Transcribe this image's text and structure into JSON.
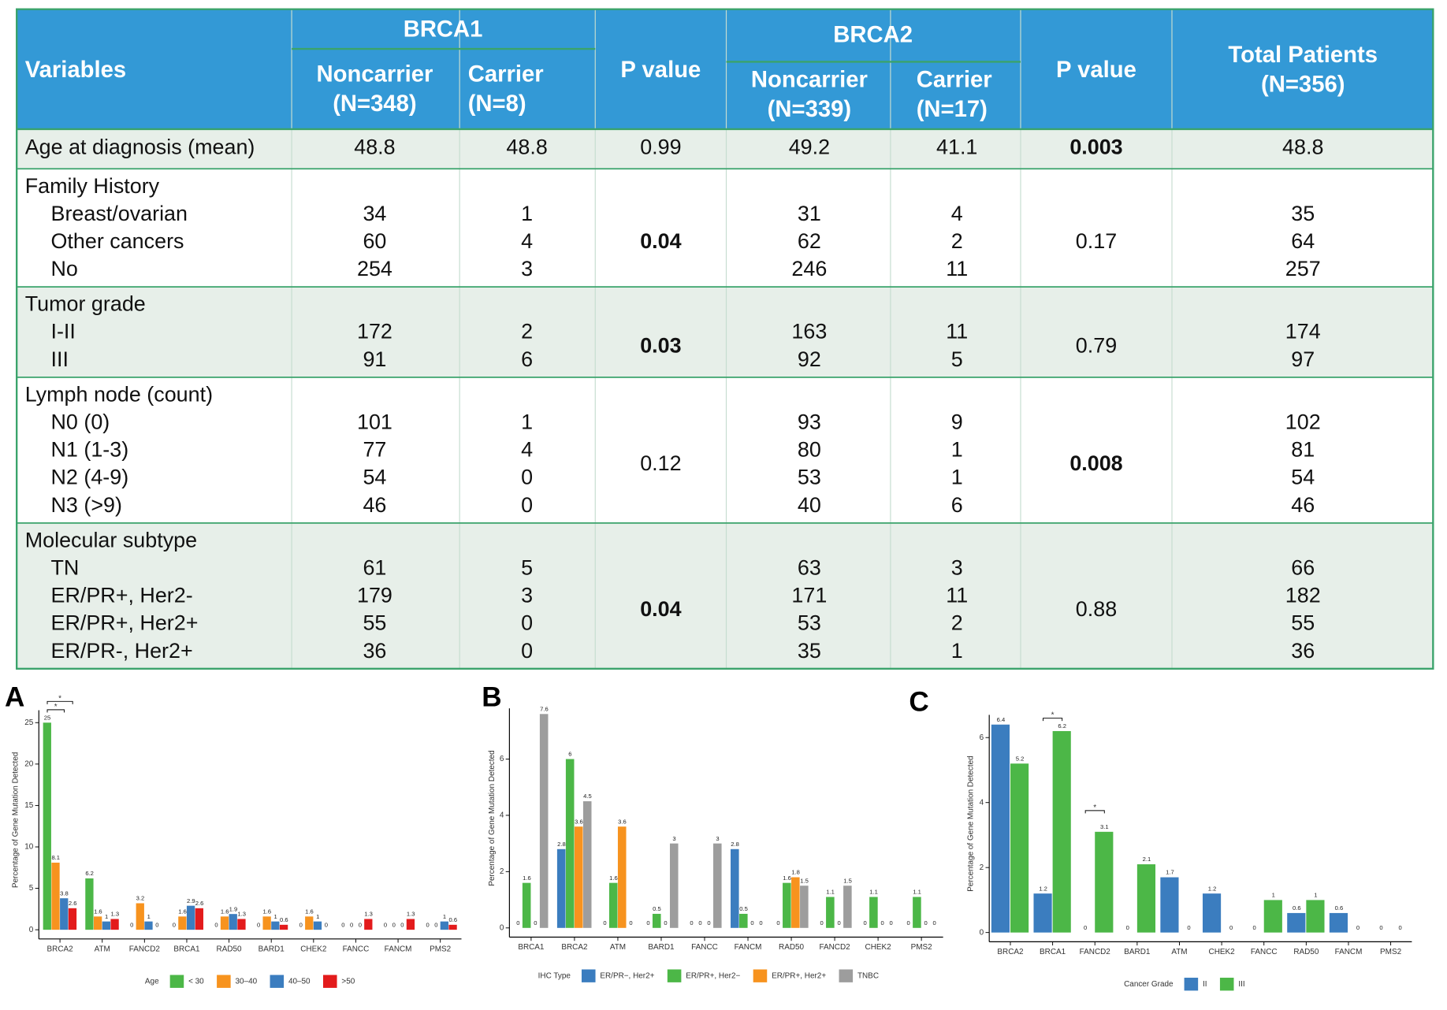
{
  "table": {
    "header": {
      "variables": "Variables",
      "brca1": {
        "title": "BRCA1",
        "noncarrier": [
          "Noncarrier",
          "(N=348)"
        ],
        "carrier": [
          "Carrier",
          "(N=8)"
        ],
        "p": "P value"
      },
      "brca2": {
        "title": "BRCA2",
        "noncarrier": [
          "Noncarrier",
          "(N=339)"
        ],
        "carrier": [
          "Carrier",
          "(N=17)"
        ],
        "p": "P value"
      },
      "total": [
        "Total Patients",
        "(N=356)"
      ]
    },
    "groups": [
      {
        "label": "Age at diagnosis (mean)",
        "values": [
          48.8,
          48.8,
          49.2,
          41.1,
          48.8
        ],
        "p": [
          0.99,
          0.003
        ]
      },
      {
        "label": "Family History",
        "p": [
          0.04,
          0.17
        ],
        "rows": [
          {
            "label": "Breast/ovarian",
            "values": [
              34,
              1,
              31,
              4,
              35
            ]
          },
          {
            "label": "Other cancers",
            "values": [
              60,
              4,
              62,
              2,
              64
            ]
          },
          {
            "label": "No",
            "values": [
              254,
              3,
              246,
              11,
              257
            ]
          }
        ]
      },
      {
        "label": "Tumor grade",
        "p": [
          0.03,
          0.79
        ],
        "rows": [
          {
            "label": "I-II",
            "values": [
              172,
              2,
              163,
              11,
              174
            ]
          },
          {
            "label": "III",
            "values": [
              91,
              6,
              92,
              5,
              97
            ]
          }
        ]
      },
      {
        "label": "Lymph node (count)",
        "p": [
          0.12,
          0.008
        ],
        "rows": [
          {
            "label": "N0 (0)",
            "values": [
              101,
              1,
              93,
              9,
              102
            ]
          },
          {
            "label": "N1 (1-3)",
            "values": [
              77,
              4,
              80,
              1,
              81
            ]
          },
          {
            "label": "N2 (4-9)",
            "values": [
              54,
              0,
              53,
              1,
              54
            ]
          },
          {
            "label": "N3 (>9)",
            "values": [
              46,
              0,
              40,
              6,
              46
            ]
          }
        ]
      },
      {
        "label": "Molecular subtype",
        "p": [
          0.04,
          0.88
        ],
        "rows": [
          {
            "label": "TN",
            "values": [
              61,
              5,
              63,
              3,
              66
            ]
          },
          {
            "label": "ER/PR+, Her2-",
            "values": [
              179,
              3,
              171,
              11,
              182
            ]
          },
          {
            "label": "ER/PR+, Her2+",
            "values": [
              55,
              0,
              53,
              2,
              55
            ]
          },
          {
            "label": "ER/PR-, Her2+",
            "values": [
              36,
              0,
              35,
              1,
              36
            ]
          }
        ]
      }
    ]
  },
  "chart_data": [
    {
      "type": "bar",
      "panel": "A",
      "ylabel": "Percentage of Gene Mutation Detected",
      "legend_title": "Age",
      "categories": [
        "BRCA2",
        "ATM",
        "FANCD2",
        "BRCA1",
        "RAD50",
        "BARD1",
        "CHEK2",
        "FANCC",
        "FANCM",
        "PMS2"
      ],
      "series": [
        {
          "name": "< 30",
          "color": "#4cb747",
          "values": [
            25,
            6.2,
            0,
            0,
            0,
            0,
            0,
            0,
            0,
            0
          ]
        },
        {
          "name": "30–40",
          "color": "#f7931e",
          "values": [
            8.1,
            1.6,
            3.2,
            1.6,
            1.6,
            1.6,
            1.6,
            0,
            0,
            0
          ]
        },
        {
          "name": "40–50",
          "color": "#3b7dbf",
          "values": [
            3.8,
            1,
            1,
            2.9,
            1.9,
            1,
            1,
            0,
            0,
            1
          ]
        },
        {
          "name": ">50",
          "color": "#e31b1c",
          "values": [
            2.6,
            1.3,
            0,
            2.6,
            1.3,
            0.6,
            0,
            1.3,
            1.3,
            0.6
          ]
        }
      ],
      "ylim": [
        0,
        26.5
      ],
      "yticks": [
        0,
        5,
        10,
        15,
        20,
        25
      ],
      "annotations": [
        {
          "text": "*",
          "category": 0,
          "series": [
            0,
            2
          ]
        },
        {
          "text": "*",
          "category": 0,
          "series": [
            0,
            3
          ]
        }
      ]
    },
    {
      "type": "bar",
      "panel": "B",
      "ylabel": "Percentage of Gene Mutation Detected",
      "legend_title": "IHC Type",
      "categories": [
        "BRCA1",
        "BRCA2",
        "ATM",
        "BARD1",
        "FANCC",
        "FANCM",
        "RAD50",
        "FANCD2",
        "CHEK2",
        "PMS2"
      ],
      "series": [
        {
          "name": "ER/PR−, Her2+",
          "color": "#3b7dbf",
          "values": [
            0,
            2.8,
            0,
            0,
            0,
            2.8,
            0,
            0,
            0,
            0
          ]
        },
        {
          "name": "ER/PR+, Her2−",
          "color": "#4cb747",
          "values": [
            1.6,
            6,
            1.6,
            0.5,
            0,
            0.5,
            1.6,
            1.1,
            1.1,
            1.1
          ]
        },
        {
          "name": "ER/PR+, Her2+",
          "color": "#f7931e",
          "values": [
            0,
            3.6,
            3.6,
            0,
            0,
            0,
            1.8,
            0,
            0,
            0
          ]
        },
        {
          "name": "TNBC",
          "color": "#9d9d9d",
          "values": [
            7.6,
            4.5,
            0,
            3,
            3,
            0,
            1.5,
            1.5,
            0,
            0
          ]
        }
      ],
      "ylim": [
        0,
        7.8
      ],
      "yticks": [
        0,
        2,
        4,
        6
      ]
    },
    {
      "type": "bar",
      "panel": "C",
      "ylabel": "Percentage of Gene Mutation Detected",
      "legend_title": "Cancer Grade",
      "categories": [
        "BRCA2",
        "BRCA1",
        "FANCD2",
        "BARD1",
        "ATM",
        "CHEK2",
        "FANCC",
        "RAD50",
        "FANCM",
        "PMS2"
      ],
      "series": [
        {
          "name": "II",
          "color": "#3b7dbf",
          "values": [
            6.4,
            1.2,
            0,
            0,
            1.7,
            1.2,
            0,
            0.6,
            0.6,
            0
          ]
        },
        {
          "name": "III",
          "color": "#4cb747",
          "values": [
            5.2,
            6.2,
            3.1,
            2.1,
            0,
            0,
            1,
            1,
            0,
            0
          ]
        }
      ],
      "ylim": [
        0,
        6.7
      ],
      "yticks": [
        0,
        2,
        4,
        6
      ],
      "annotations": [
        {
          "text": "*",
          "category": 1,
          "series": [
            0,
            1
          ]
        },
        {
          "text": "*",
          "category": 2,
          "series": [
            0,
            1
          ]
        }
      ]
    }
  ]
}
